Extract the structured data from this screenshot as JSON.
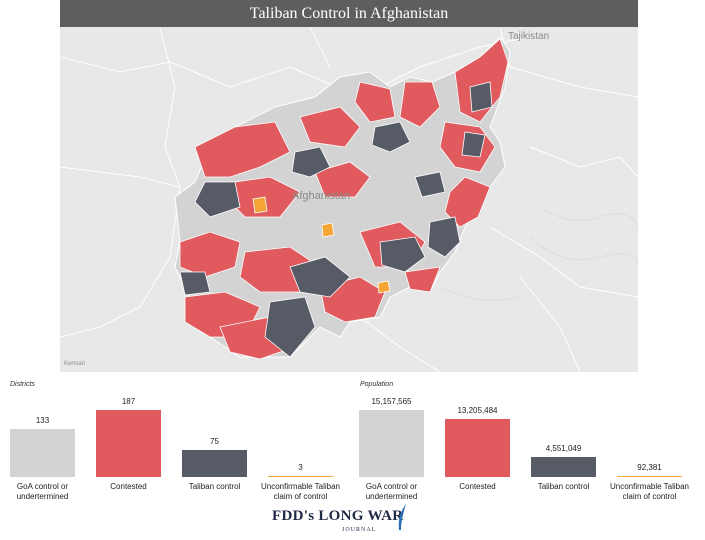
{
  "title": "Taliban Control in Afghanistan",
  "map": {
    "labels": {
      "country": "Afghanistan",
      "neighbor": "Tajikistan",
      "city": "Kerman"
    },
    "colors": {
      "goa": "#d3d3d3",
      "contested": "#e05a5e",
      "taliban": "#565b66",
      "unconfirmable": "#f5a536",
      "background": "#e8e8e8"
    }
  },
  "districts": {
    "label": "Districts",
    "bars": [
      {
        "category": "GoA control or undertermined",
        "value_label": "133",
        "value": 133,
        "color": "#d3d3d3"
      },
      {
        "category": "Contested",
        "value_label": "187",
        "value": 187,
        "color": "#e05a5e"
      },
      {
        "category": "Taliban control",
        "value_label": "75",
        "value": 75,
        "color": "#565b66"
      },
      {
        "category": "Unconfirmable Taliban claim of control",
        "value_label": "3",
        "value": 3,
        "color": "#f5a536"
      }
    ]
  },
  "population": {
    "label": "Population",
    "bars": [
      {
        "category": "GoA control or undertermined",
        "value_label": "15,157,565",
        "value": 15157565,
        "color": "#d3d3d3"
      },
      {
        "category": "Contested",
        "value_label": "13,205,484",
        "value": 13205484,
        "color": "#e05a5e"
      },
      {
        "category": "Taliban control",
        "value_label": "4,551,049",
        "value": 4551049,
        "color": "#565b66"
      },
      {
        "category": "Unconfirmable Taliban claim of control",
        "value_label": "92,381",
        "value": 92381,
        "color": "#f5a536"
      }
    ]
  },
  "logo": {
    "text": "FDD's LONG WAR",
    "sub": "JOURNAL"
  }
}
